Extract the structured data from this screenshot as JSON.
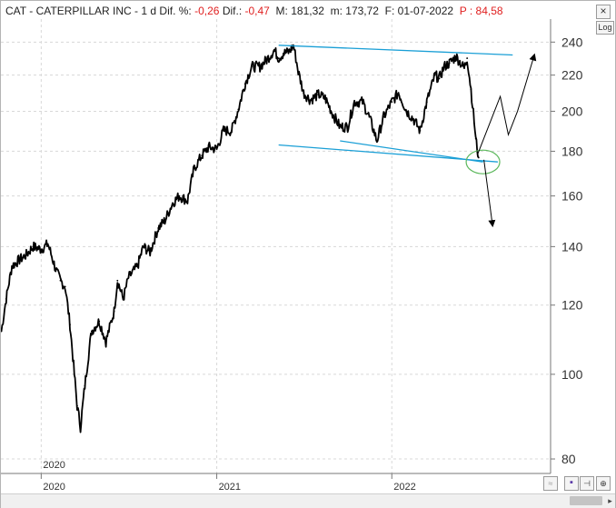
{
  "header": {
    "ticker": "CAT",
    "separator": " - ",
    "company": "CATERPILLAR INC",
    "separator2": " - ",
    "period": "1 d",
    "dif_pct_label": "Dif. %:",
    "dif_pct_value": "-0,26",
    "dif_label": "Dif.:",
    "dif_value": "-0,47",
    "max_label": "M:",
    "max_value": "181,32",
    "min_label": "m:",
    "min_value": "173,72",
    "date_label": "F:",
    "date_value": "01-07-2022",
    "p_label": "P :",
    "p_value": "84,58"
  },
  "controls": {
    "close_glyph": "×",
    "log_label": "Log",
    "wave_glyph": "≈",
    "save_glyph": "▪",
    "pin_glyph": "⊣",
    "extra_glyph": "⊕",
    "scroll_right_glyph": "▸"
  },
  "colors": {
    "price": "#000000",
    "channel": "#1a9fd6",
    "ellipse": "#5cb85c",
    "negative": "#e02020",
    "grid": "#d8d8d8"
  },
  "chart_data": {
    "type": "line",
    "title": "CAT - CATERPILLAR INC - 1 d",
    "y_scale": "log",
    "ylim": [
      77,
      255
    ],
    "y_ticks": [
      80,
      100,
      120,
      140,
      160,
      180,
      200,
      220,
      240
    ],
    "x_range": [
      "2019-10-09",
      "2022-11-28"
    ],
    "x_ticks": [
      {
        "date": "2020-01-01",
        "label": "2020"
      },
      {
        "date": "2021-01-01",
        "label": "2021"
      },
      {
        "date": "2022-01-01",
        "label": "2022"
      }
    ],
    "corner_year_label": "2020",
    "grid": true,
    "series": [
      {
        "name": "CAT",
        "style": "daily price",
        "x": [
          "2019-10-10",
          "2019-10-20",
          "2019-11-01",
          "2019-11-15",
          "2019-12-01",
          "2019-12-15",
          "2020-01-01",
          "2020-01-15",
          "2020-01-31",
          "2020-02-10",
          "2020-02-20",
          "2020-03-01",
          "2020-03-10",
          "2020-03-16",
          "2020-03-23",
          "2020-04-01",
          "2020-04-15",
          "2020-05-01",
          "2020-05-15",
          "2020-06-01",
          "2020-06-08",
          "2020-06-20",
          "2020-07-01",
          "2020-07-20",
          "2020-08-01",
          "2020-08-15",
          "2020-09-01",
          "2020-09-15",
          "2020-10-01",
          "2020-10-15",
          "2020-11-01",
          "2020-11-15",
          "2020-12-01",
          "2020-12-15",
          "2021-01-01",
          "2021-01-15",
          "2021-02-01",
          "2021-02-15",
          "2021-03-01",
          "2021-03-15",
          "2021-04-01",
          "2021-04-15",
          "2021-05-01",
          "2021-05-10",
          "2021-05-20",
          "2021-06-01",
          "2021-06-10",
          "2021-06-20",
          "2021-07-01",
          "2021-07-15",
          "2021-08-01",
          "2021-08-15",
          "2021-09-01",
          "2021-09-15",
          "2021-10-01",
          "2021-10-15",
          "2021-11-01",
          "2021-11-15",
          "2021-12-01",
          "2021-12-15",
          "2022-01-01",
          "2022-01-15",
          "2022-02-01",
          "2022-02-15",
          "2022-03-01",
          "2022-03-15",
          "2022-04-01",
          "2022-04-10",
          "2022-04-20",
          "2022-05-01",
          "2022-05-15",
          "2022-06-01",
          "2022-06-07",
          "2022-06-15",
          "2022-06-25",
          "2022-07-01"
        ],
        "values": [
          112,
          122,
          133,
          135,
          137,
          140,
          139,
          141,
          132,
          128,
          126,
          114,
          100,
          92,
          87,
          97,
          112,
          115,
          109,
          118,
          128,
          122,
          129,
          133,
          140,
          138,
          147,
          150,
          157,
          160,
          158,
          172,
          178,
          182,
          181,
          190,
          190,
          201,
          215,
          225,
          225,
          229,
          235,
          230,
          233,
          234,
          238,
          222,
          210,
          206,
          209,
          207,
          198,
          192,
          192,
          205,
          205,
          197,
          185,
          197,
          205,
          210,
          200,
          196,
          190,
          205,
          220,
          218,
          225,
          227,
          231,
          224,
          230,
          212,
          186,
          177
        ]
      }
    ],
    "annotations": {
      "channel_upper": {
        "x": [
          "2021-05-10",
          "2022-09-10"
        ],
        "y": [
          238,
          232
        ]
      },
      "channel_lower": {
        "x": [
          "2021-05-10",
          "2022-08-10"
        ],
        "y": [
          183,
          175
        ]
      },
      "channel_lower2": {
        "x": [
          "2021-09-15",
          "2022-07-10"
        ],
        "y": [
          185,
          175
        ]
      },
      "target_ellipse": {
        "center": {
          "date": "2022-07-10",
          "y": 175
        },
        "rx_days": 35
      },
      "arrow_down": {
        "from": {
          "date": "2022-07-12",
          "y": 176
        },
        "to": {
          "date": "2022-07-30",
          "y": 148
        }
      },
      "projection_up": {
        "x": [
          "2022-06-28",
          "2022-08-15",
          "2022-09-01",
          "2022-09-20",
          "2022-10-25"
        ],
        "y": [
          178,
          208,
          188,
          200,
          232
        ]
      }
    }
  }
}
